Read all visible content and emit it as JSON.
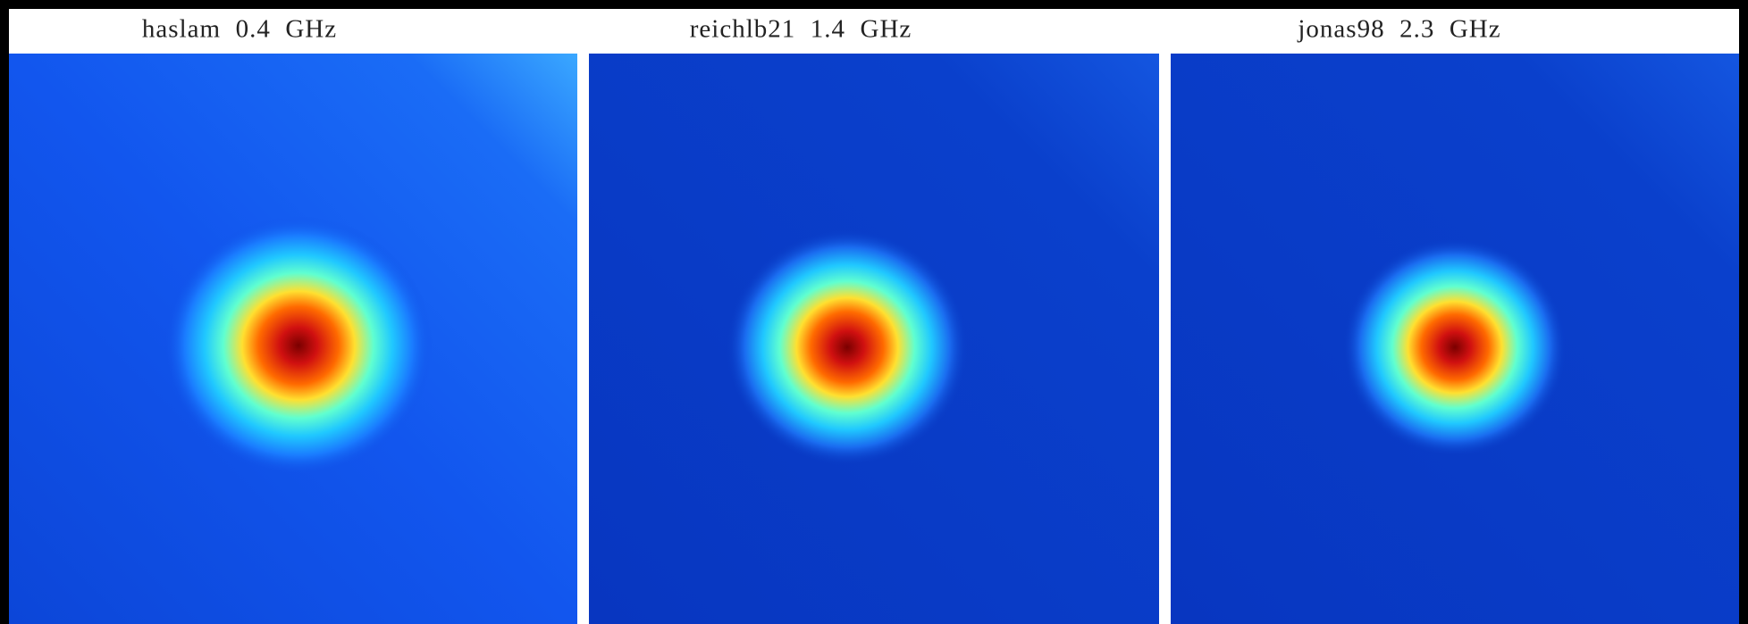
{
  "panels": [
    {
      "title": "haslam  0.4  GHz"
    },
    {
      "title": "reichlb21  1.4  GHz"
    },
    {
      "title": "jonas98  2.3  GHz"
    }
  ]
}
